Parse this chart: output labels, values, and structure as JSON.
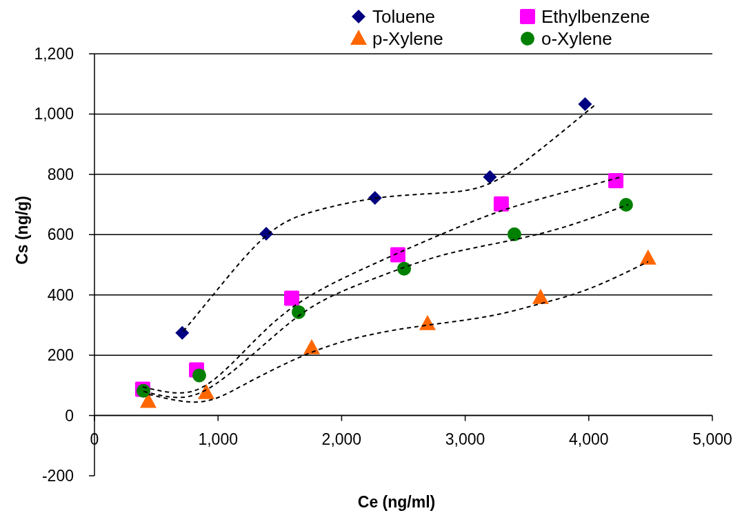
{
  "chart_data": {
    "type": "scatter",
    "xlabel": "Ce (ng/ml)",
    "ylabel": "Cs (ng/g)",
    "xlim": [
      0,
      5000
    ],
    "ylim": [
      -200,
      1200
    ],
    "xticks": [
      0,
      {
        "value": 1000,
        "label": "1,000"
      },
      {
        "value": 2000,
        "label": "2,000"
      },
      {
        "value": 3000,
        "label": "3,000"
      },
      {
        "value": 4000,
        "label": "4,000"
      },
      {
        "value": 5000,
        "label": "5,000"
      }
    ],
    "yticks": [
      -200,
      0,
      200,
      400,
      600,
      800,
      {
        "value": 1000,
        "label": "1,000"
      },
      {
        "value": 1200,
        "label": "1,200"
      }
    ],
    "grid": "y",
    "legend": "top",
    "series": [
      {
        "name": "Toluene",
        "color": "#000080",
        "marker": "diamond",
        "x": [
          710,
          1390,
          2270,
          3200,
          3970
        ],
        "values": [
          274,
          603,
          722,
          791,
          1033
        ]
      },
      {
        "name": "Ethylbenzene",
        "color": "#ff00ff",
        "marker": "square",
        "x": [
          390,
          826,
          1596,
          2455,
          3292,
          4219
        ],
        "values": [
          87,
          151,
          389,
          533,
          702,
          779
        ]
      },
      {
        "name": "p-Xylene",
        "color": "#ff6600",
        "marker": "triangle",
        "x": [
          435,
          904,
          1758,
          2695,
          3610,
          4480
        ],
        "values": [
          46,
          75,
          224,
          304,
          391,
          521
        ]
      },
      {
        "name": "o-Xylene",
        "color": "#008000",
        "marker": "circle",
        "x": [
          396,
          848,
          1652,
          2506,
          3398,
          4302
        ],
        "values": [
          82,
          133,
          343,
          487,
          601,
          699
        ]
      },
      {
        "type": "line",
        "color": "#000000",
        "marker": "none",
        "line_style": "dashed",
        "x": [
          720,
          1000,
          1400,
          1800,
          2300,
          2800,
          3200,
          3600,
          4050
        ],
        "values": [
          280,
          420,
          600,
          680,
          722,
          738,
          770,
          880,
          1030
        ]
      },
      {
        "type": "line",
        "color": "#000000",
        "marker": "none",
        "line_style": "dashed",
        "x": [
          390,
          700,
          1000,
          1400,
          1800,
          2300,
          2800,
          3300,
          3800,
          4250
        ],
        "values": [
          95,
          75,
          130,
          290,
          410,
          510,
          600,
          680,
          740,
          790
        ]
      },
      {
        "type": "line",
        "color": "#000000",
        "marker": "none",
        "line_style": "dashed",
        "x": [
          396,
          700,
          1000,
          1400,
          1800,
          2300,
          2800,
          3300,
          3800,
          4320
        ],
        "values": [
          80,
          60,
          110,
          245,
          370,
          460,
          530,
          575,
          625,
          700
        ]
      },
      {
        "type": "line",
        "color": "#000000",
        "marker": "none",
        "line_style": "dashed",
        "x": [
          440,
          850,
          1200,
          1700,
          2200,
          2700,
          3200,
          3600,
          4000,
          4480
        ],
        "values": [
          70,
          45,
          100,
          200,
          265,
          300,
          330,
          370,
          420,
          510
        ]
      }
    ]
  }
}
